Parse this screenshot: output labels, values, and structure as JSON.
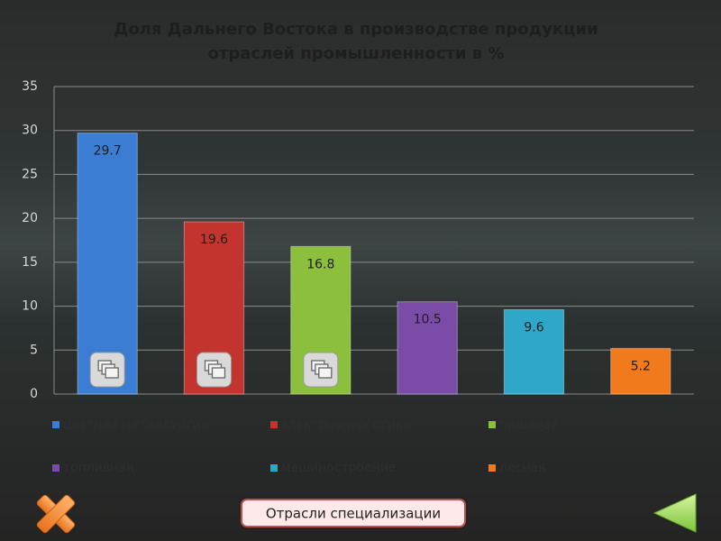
{
  "chart_data": {
    "type": "bar",
    "title": [
      "Доля Дальнего Востока в производстве продукции",
      "отраслей промышленности в %"
    ],
    "series": [
      {
        "name": "цветная металлургия",
        "color": "#3b7dd3",
        "values": [
          29.7
        ]
      },
      {
        "name": "электроэнергетика",
        "color": "#c3342f",
        "values": [
          19.6
        ]
      },
      {
        "name": "пищевая",
        "color": "#8cbf3c",
        "values": [
          16.8
        ]
      },
      {
        "name": "топливная",
        "color": "#7b4ca7",
        "values": [
          10.5
        ]
      },
      {
        "name": "машиностроение",
        "color": "#2ea7c9",
        "values": [
          9.6
        ]
      },
      {
        "name": "лесная",
        "color": "#f07a1c",
        "values": [
          5.2
        ]
      }
    ],
    "ylim": [
      0,
      35
    ],
    "yticks": [
      0,
      5,
      10,
      15,
      20,
      25,
      30,
      35
    ],
    "grid": true
  },
  "navigation": {
    "button": "Отрасли специализации"
  }
}
